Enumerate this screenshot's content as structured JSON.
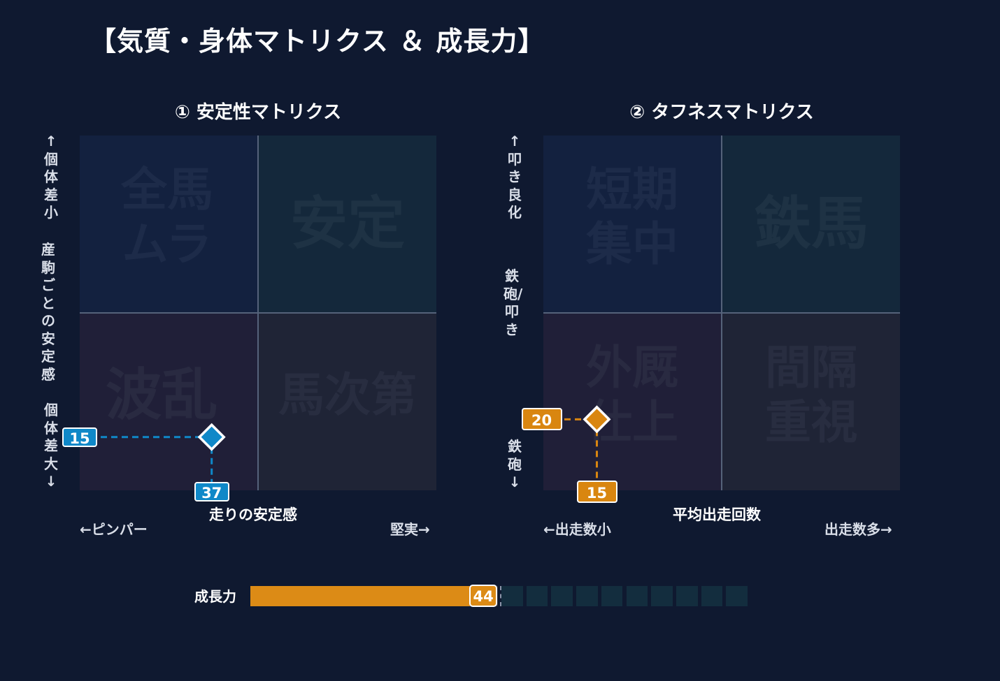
{
  "title": "【気質・身体マトリクス ＆ 成長力】",
  "colors": {
    "background": "#0f1930",
    "quad_top_left": "#13213f",
    "quad_top_right": "#14283b",
    "quad_bottom_left": "#201f38",
    "quad_bottom_right": "#1f2436",
    "stability_marker": "#0f88c8",
    "toughness_marker": "#d98610",
    "growth_fill": "#dc8b16",
    "growth_empty_dark": "#2b2e37",
    "growth_empty_teal": "#132d3e"
  },
  "chart_data": [
    {
      "type": "scatter",
      "title": "① 安定性マトリクス",
      "xlabel": "走りの安定感",
      "x_left_label": "←ピンパー",
      "x_right_label": "堅実→",
      "ylabel_top": "↑個体差小",
      "ylabel_middle": "産駒ごとの安定感",
      "ylabel_bottom": "個体差大↓",
      "xlim": [
        0,
        100
      ],
      "ylim": [
        0,
        100
      ],
      "quadrants": {
        "top_left": "全馬\nムラ",
        "top_right": "安定",
        "bottom_left": "波乱",
        "bottom_right": "馬次第"
      },
      "point": {
        "x": 37,
        "y": 15
      },
      "marker_color": "#0f88c8"
    },
    {
      "type": "scatter",
      "title": "② タフネスマトリクス",
      "xlabel": "平均出走回数",
      "x_left_label": "←出走数小",
      "x_right_label": "出走数多→",
      "ylabel_top": "↑叩き良化",
      "ylabel_middle": "鉄砲/叩き",
      "ylabel_bottom": "鉄砲↓",
      "xlim": [
        0,
        100
      ],
      "ylim": [
        0,
        100
      ],
      "quadrants": {
        "top_left": "短期\n集中",
        "top_right": "鉄馬",
        "bottom_left": "外厩\n仕上",
        "bottom_right": "間隔\n重視"
      },
      "point": {
        "x": 15,
        "y": 20
      },
      "marker_color": "#d98610"
    },
    {
      "type": "bar",
      "title": "成長力",
      "value": 44,
      "max": 100,
      "segments": 20,
      "reference": 50
    }
  ]
}
